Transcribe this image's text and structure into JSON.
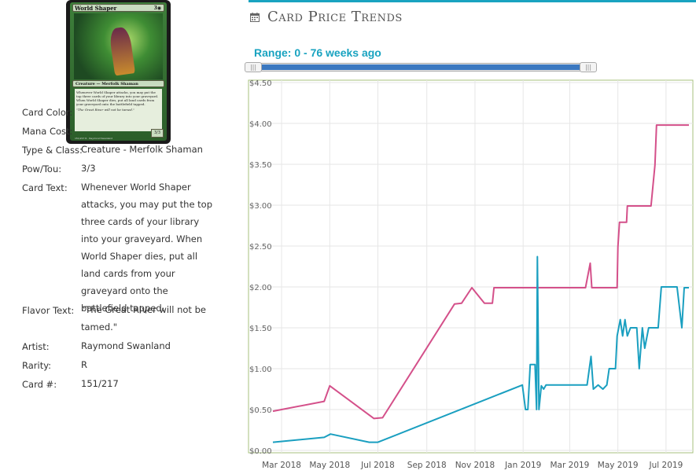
{
  "card": {
    "name": "World Shaper",
    "mana": "3◉",
    "type_line": "Creature — Merfolk Shaman",
    "text": "Whenever World Shaper attacks, you may put the top three cards of your library into your graveyard. When World Shaper dies, put all land cards from your graveyard onto the battlefield tapped.",
    "flavor": "\"The Great River will not be tamed.\"",
    "pt": "3/3",
    "footer": "151/217 R · Raymond Swanland"
  },
  "details": {
    "color_label": "Card Color:",
    "mana_label": "Mana Cost:",
    "type_label": "Type & Class:",
    "type_value": "Creature - Merfolk Shaman",
    "pow_label": "Pow/Tou:",
    "pow_value": "3/3",
    "text_label": "Card Text:",
    "text_value": "Whenever World Shaper attacks, you may put the top three cards of your library into your graveyard. When World Shaper dies, put all land cards from your graveyard onto the battlefield tapped.",
    "flavor_label": "Flavor Text:",
    "flavor_value": "\"The Great River will not be tamed.\"",
    "artist_label": "Artist:",
    "artist_value": "Raymond Swanland",
    "rarity_label": "Rarity:",
    "rarity_value": "R",
    "number_label": "Card #:",
    "number_value": "151/217"
  },
  "header": {
    "title": "Card Price Trends",
    "range_label": "Range: 0 - 76 weeks ago",
    "icon": "calendar-icon"
  },
  "colors": {
    "accent": "#19a3c0",
    "pink_series": "#d4508a",
    "teal_series": "#1a9fc0",
    "slider_fill": "#3b78c0"
  },
  "chart_data": {
    "type": "line",
    "title": "",
    "xlabel": "",
    "ylabel": "",
    "ylim": [
      0,
      4.5
    ],
    "y_ticks": [
      "$0.00",
      "$0.50",
      "$1.00",
      "$1.50",
      "$2.00",
      "$2.50",
      "$3.00",
      "$3.50",
      "$4.00",
      "$4.50"
    ],
    "x_ticks": [
      "Mar 2018",
      "May 2018",
      "Jul 2018",
      "Sep 2018",
      "Nov 2018",
      "Jan 2019",
      "Mar 2019",
      "May 2019",
      "Jul 2019"
    ],
    "x_range": [
      "2018-02-18",
      "2019-07-30"
    ],
    "grid": true,
    "legend": "none",
    "series": [
      {
        "color": "#d4508a",
        "points": [
          [
            "2018-02-18",
            0.48
          ],
          [
            "2018-04-24",
            0.6
          ],
          [
            "2018-05-01",
            0.79
          ],
          [
            "2018-06-26",
            0.39
          ],
          [
            "2018-07-07",
            0.4
          ],
          [
            "2018-10-06",
            1.79
          ],
          [
            "2018-10-15",
            1.8
          ],
          [
            "2018-10-28",
            1.99
          ],
          [
            "2018-11-13",
            1.8
          ],
          [
            "2018-11-23",
            1.8
          ],
          [
            "2018-11-25",
            1.99
          ],
          [
            "2019-03-21",
            1.99
          ],
          [
            "2019-03-27",
            2.29
          ],
          [
            "2019-03-29",
            1.99
          ],
          [
            "2019-04-30",
            1.99
          ],
          [
            "2019-05-01",
            2.49
          ],
          [
            "2019-05-03",
            2.79
          ],
          [
            "2019-05-12",
            2.79
          ],
          [
            "2019-05-13",
            2.99
          ],
          [
            "2019-06-12",
            2.99
          ],
          [
            "2019-06-17",
            3.49
          ],
          [
            "2019-06-19",
            3.98
          ],
          [
            "2019-07-30",
            3.98
          ]
        ]
      },
      {
        "color": "#1a9fc0",
        "points": [
          [
            "2018-02-18",
            0.1
          ],
          [
            "2018-04-24",
            0.16
          ],
          [
            "2018-05-02",
            0.2
          ],
          [
            "2018-06-20",
            0.1
          ],
          [
            "2018-07-01",
            0.1
          ],
          [
            "2018-12-31",
            0.8
          ],
          [
            "2019-01-04",
            0.5
          ],
          [
            "2019-01-07",
            0.5
          ],
          [
            "2019-01-10",
            1.05
          ],
          [
            "2019-01-16",
            1.05
          ],
          [
            "2019-01-18",
            0.5
          ],
          [
            "2019-01-19",
            2.37
          ],
          [
            "2019-01-21",
            0.5
          ],
          [
            "2019-01-24",
            0.79
          ],
          [
            "2019-01-27",
            0.75
          ],
          [
            "2019-01-30",
            0.8
          ],
          [
            "2019-03-23",
            0.8
          ],
          [
            "2019-03-28",
            1.15
          ],
          [
            "2019-03-31",
            0.75
          ],
          [
            "2019-04-06",
            0.8
          ],
          [
            "2019-04-12",
            0.75
          ],
          [
            "2019-04-17",
            0.8
          ],
          [
            "2019-04-20",
            1.0
          ],
          [
            "2019-04-28",
            1.0
          ],
          [
            "2019-04-30",
            1.4
          ],
          [
            "2019-05-04",
            1.6
          ],
          [
            "2019-05-07",
            1.4
          ],
          [
            "2019-05-10",
            1.6
          ],
          [
            "2019-05-13",
            1.4
          ],
          [
            "2019-05-17",
            1.5
          ],
          [
            "2019-05-25",
            1.5
          ],
          [
            "2019-05-28",
            1.0
          ],
          [
            "2019-06-01",
            1.5
          ],
          [
            "2019-06-04",
            1.25
          ],
          [
            "2019-06-09",
            1.5
          ],
          [
            "2019-06-21",
            1.5
          ],
          [
            "2019-06-25",
            2.0
          ],
          [
            "2019-07-15",
            2.0
          ],
          [
            "2019-07-21",
            1.5
          ],
          [
            "2019-07-24",
            1.99
          ],
          [
            "2019-07-30",
            1.99
          ]
        ]
      }
    ]
  }
}
